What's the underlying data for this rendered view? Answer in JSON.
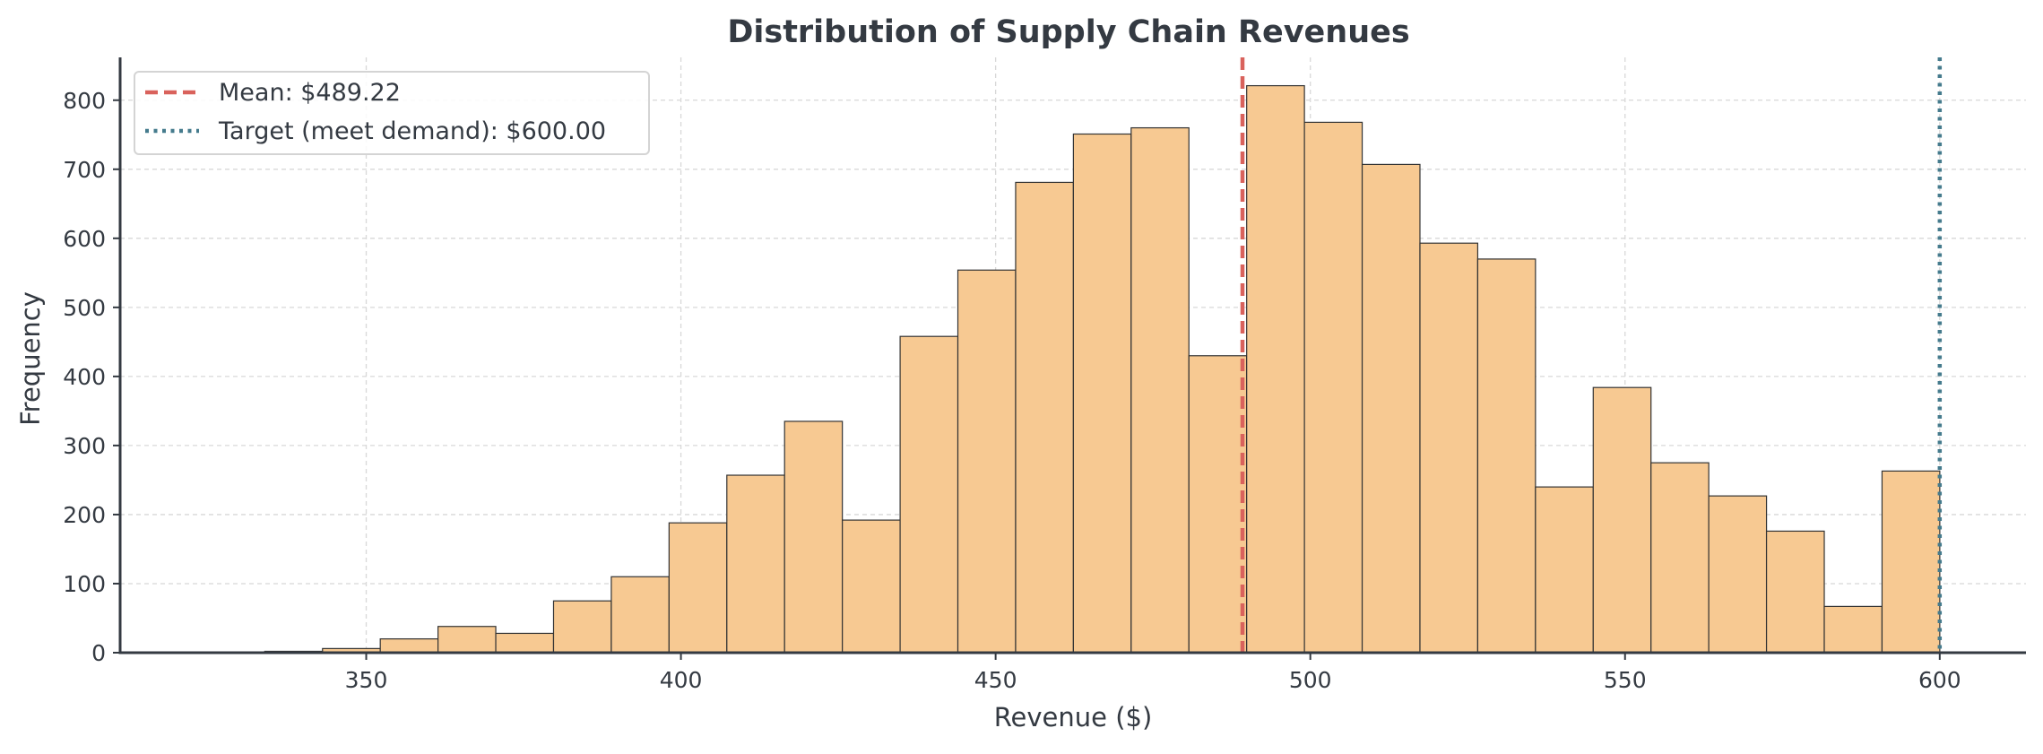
{
  "chart_data": {
    "type": "bar",
    "title": "Distribution of Supply Chain Revenues",
    "xlabel": "Revenue ($)",
    "ylabel": "Frequency",
    "xlim": [
      310.9,
      613.7
    ],
    "ylim": [
      0,
      862
    ],
    "xticks": [
      350,
      400,
      450,
      500,
      550,
      600
    ],
    "yticks": [
      0,
      100,
      200,
      300,
      400,
      500,
      600,
      700,
      800
    ],
    "grid": true,
    "bin_start": 324.7,
    "bin_width": 9.177,
    "values": [
      1,
      2,
      6,
      20,
      38,
      28,
      75,
      110,
      188,
      257,
      335,
      192,
      458,
      554,
      681,
      751,
      760,
      430,
      821,
      768,
      707,
      593,
      570,
      240,
      384,
      275,
      227,
      176,
      67,
      263
    ],
    "bar_color": "#f7c992",
    "bar_edge_color": "#333333",
    "reference_lines": [
      {
        "label": "Mean: $489.22",
        "value": 489.22,
        "style": "dashed",
        "color": "#d9625c"
      },
      {
        "label": "Target (meet demand): $600.00",
        "value": 600.0,
        "style": "dotted",
        "color": "#457b8d"
      }
    ],
    "legend_position": "top-left"
  }
}
